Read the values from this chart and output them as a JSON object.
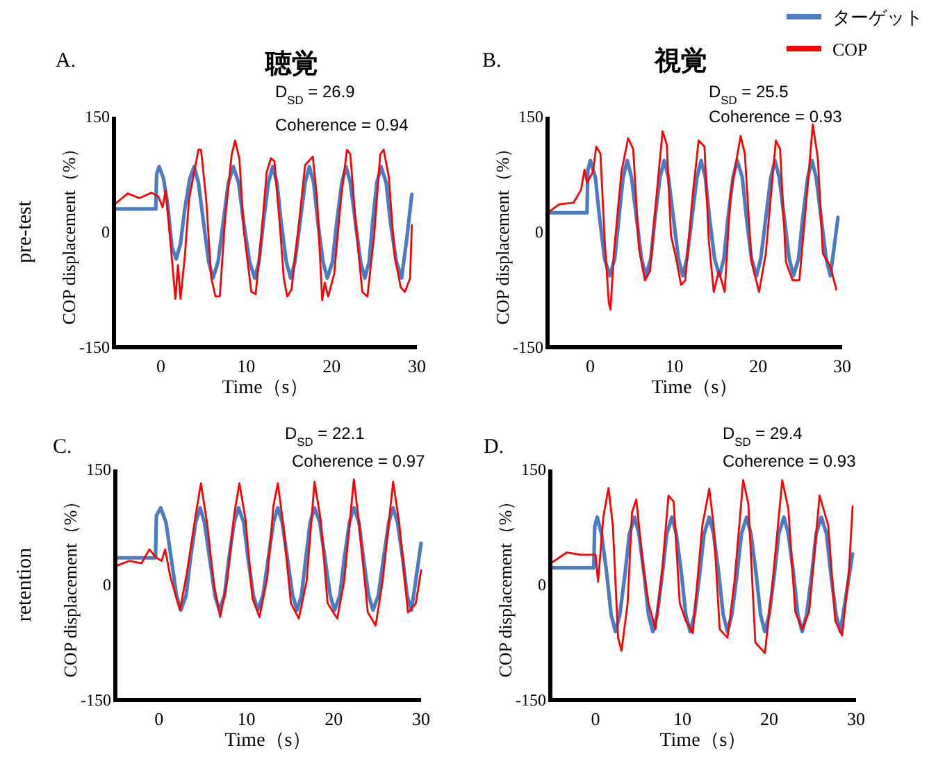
{
  "chart_data": [
    {
      "type": "line",
      "title": "聴覚",
      "xlabel": "Time（s）",
      "ylabel": "COP displacement（%）",
      "xlim": [
        -5.5,
        30
      ],
      "ylim": [
        -150,
        150
      ],
      "xticks": [
        0,
        10,
        20,
        30
      ],
      "yticks": [
        -150,
        0,
        150
      ],
      "annotations": [
        "A.",
        "D$_{SD}$ = 26.9",
        "Coherence = 0.94",
        "pre-test"
      ],
      "series": [
        {
          "color": "#4a7cc4",
          "x": [
            -5.5,
            -0.6,
            -0.5,
            -0.2,
            0.3,
            0.8,
            1.3,
            1.8,
            2.3,
            2.8,
            3.4,
            3.9,
            4.4,
            5.0,
            5.6,
            6.1,
            6.7,
            7.3,
            7.9,
            8.5,
            9.1,
            9.7,
            10.4,
            11.0,
            11.5,
            12.0,
            12.6,
            13.1,
            13.6,
            14.1,
            14.7,
            15.2,
            15.7,
            16.3,
            16.9,
            17.4,
            17.9,
            18.4,
            19.0,
            19.5,
            20.1,
            20.6,
            21.2,
            21.7,
            22.2,
            22.8,
            23.4,
            23.9,
            24.4,
            24.8,
            25.3,
            25.8,
            26.4,
            26.9,
            27.6,
            28.2,
            28.8,
            29.4
          ],
          "values": [
            30,
            30,
            75,
            85,
            70,
            35,
            -20,
            -35,
            -15,
            30,
            70,
            85,
            64,
            12,
            -39,
            -60,
            -39,
            12,
            64,
            85,
            64,
            12,
            -39,
            -60,
            -39,
            12,
            64,
            85,
            64,
            12,
            -39,
            -60,
            -39,
            12,
            64,
            85,
            64,
            12,
            -39,
            -60,
            -39,
            12,
            64,
            85,
            64,
            12,
            -39,
            -60,
            -39,
            12,
            64,
            85,
            64,
            12,
            -39,
            -60,
            -10,
            49
          ]
        },
        {
          "color": "#ff0000",
          "x": [
            -5.5,
            -3.9,
            -2.5,
            -1.1,
            -0.3,
            0.2,
            0.55,
            0.9,
            1.7,
            2.0,
            2.3,
            2.8,
            3.3,
            4.4,
            4.7,
            5.3,
            5.9,
            6.4,
            6.9,
            7.5,
            8.3,
            8.7,
            9.2,
            9.7,
            10.6,
            11.1,
            11.7,
            12.4,
            12.9,
            13.3,
            13.9,
            14.4,
            14.8,
            15.3,
            16.1,
            16.9,
            17.8,
            18.3,
            18.9,
            19.2,
            19.6,
            20.3,
            21.1,
            21.8,
            22.2,
            22.8,
            23.6,
            24.2,
            25.0,
            25.7,
            26.1,
            26.7,
            27.4,
            28.1,
            28.6,
            29.2,
            29.4
          ],
          "values": [
            35,
            50,
            44,
            51,
            46,
            32,
            54,
            14,
            -87,
            -43,
            -87,
            -32,
            43,
            107,
            107,
            43,
            -60,
            -84,
            -84,
            14,
            101,
            119,
            95,
            3,
            -78,
            -81,
            -14,
            78,
            96,
            92,
            14,
            -60,
            -84,
            -75,
            3,
            87,
            98,
            43,
            -89,
            -66,
            -84,
            -55,
            43,
            107,
            101,
            14,
            -78,
            -84,
            -3,
            101,
            107,
            72,
            -32,
            -72,
            -78,
            -60,
            9
          ]
        }
      ]
    },
    {
      "type": "line",
      "title": "視覚",
      "xlabel": "Time（s）",
      "ylabel": "COP displacement（%）",
      "xlim": [
        -5.1,
        30
      ],
      "ylim": [
        -150,
        150
      ],
      "xticks": [
        0,
        10,
        20,
        30
      ],
      "yticks": [
        -150,
        0,
        150
      ],
      "legend": "top right",
      "annotations": [
        "B.",
        "D$_{SD}$ = 25.5",
        "Coherence = 0.93"
      ],
      "series": [
        {
          "name": "ターゲット",
          "color": "#4a7cc4",
          "x": [
            -5.1,
            -0.4,
            -0.3,
            0.0,
            0.6,
            1.1,
            1.7,
            2.3,
            2.9,
            3.4,
            3.9,
            4.4,
            4.9,
            5.5,
            6.1,
            6.6,
            7.2,
            7.7,
            8.3,
            8.8,
            9.3,
            9.9,
            10.5,
            11.0,
            11.5,
            12.1,
            12.7,
            13.2,
            13.7,
            14.2,
            14.8,
            15.4,
            15.9,
            16.4,
            17.0,
            17.5,
            18.1,
            18.6,
            19.2,
            19.8,
            20.3,
            20.9,
            21.5,
            22.0,
            22.5,
            23.1,
            23.7,
            24.2,
            24.8,
            25.3,
            25.9,
            26.4,
            26.9,
            27.5,
            28.1,
            28.6,
            29.5
          ],
          "values": [
            25,
            25,
            80,
            93,
            71,
            18,
            -35,
            -57,
            -35,
            18,
            71,
            93,
            71,
            18,
            -35,
            -57,
            -35,
            18,
            71,
            93,
            71,
            18,
            -35,
            -57,
            -35,
            18,
            71,
            93,
            71,
            18,
            -35,
            -57,
            -35,
            18,
            71,
            93,
            71,
            18,
            -35,
            -57,
            -35,
            18,
            71,
            93,
            71,
            18,
            -35,
            -57,
            -35,
            18,
            71,
            93,
            71,
            18,
            -35,
            -57,
            19
          ]
        },
        {
          "name": "COP",
          "color": "#ff0000",
          "x": [
            -5.1,
            -3.7,
            -2.0,
            -1.1,
            -0.7,
            -0.4,
            0.3,
            0.7,
            1.2,
            1.7,
            2.2,
            2.4,
            2.8,
            3.7,
            4.5,
            5.1,
            5.8,
            6.5,
            7.1,
            7.9,
            8.6,
            9.1,
            9.6,
            10.3,
            10.8,
            11.3,
            12.2,
            12.9,
            13.6,
            14.1,
            14.7,
            15.3,
            16.0,
            16.7,
            17.9,
            18.4,
            19.2,
            20.1,
            20.9,
            22.1,
            22.6,
            23.3,
            24.1,
            24.9,
            25.8,
            26.5,
            27.1,
            27.7,
            28.6,
            29.3
          ],
          "values": [
            25,
            36,
            38,
            55,
            81,
            64,
            78,
            111,
            102,
            -10,
            -92,
            -101,
            -28,
            78,
            122,
            108,
            -22,
            -63,
            -51,
            49,
            131,
            114,
            -4,
            -39,
            -69,
            -63,
            49,
            119,
            111,
            -10,
            -78,
            -51,
            -78,
            49,
            125,
            102,
            -39,
            -78,
            -28,
            119,
            108,
            -39,
            -63,
            -63,
            49,
            140,
            96,
            -28,
            -45,
            -75
          ]
        }
      ]
    },
    {
      "type": "line",
      "xlabel": "Time（s）",
      "ylabel": "COP displacement（%）",
      "xlim": [
        -5,
        30
      ],
      "ylim": [
        -150,
        150
      ],
      "xticks": [
        0,
        10,
        20,
        30
      ],
      "yticks": [
        -150,
        0,
        150
      ],
      "annotations": [
        "C.",
        "D$_{SD}$ = 22.1",
        "Coherence = 0.97",
        "retention"
      ],
      "series": [
        {
          "color": "#4a7cc4",
          "x": [
            -5,
            -0.4,
            -0.3,
            0.2,
            0.8,
            1.4,
            2.0,
            2.5,
            3.1,
            3.6,
            4.2,
            4.7,
            5.2,
            5.8,
            6.4,
            6.9,
            7.5,
            8.0,
            8.6,
            9.1,
            9.7,
            10.2,
            10.8,
            11.3,
            11.9,
            12.5,
            13.1,
            13.6,
            14.1,
            14.7,
            15.3,
            15.8,
            16.3,
            16.8,
            17.3,
            17.8,
            18.4,
            19.0,
            19.6,
            20.1,
            20.7,
            21.2,
            21.8,
            22.3,
            22.9,
            23.4,
            24.0,
            24.5,
            25.1,
            25.7,
            26.3,
            26.8,
            27.3,
            27.9,
            28.4,
            28.9,
            30
          ],
          "values": [
            35,
            35,
            90,
            100,
            81,
            34,
            -14,
            -33,
            -14,
            34,
            81,
            100,
            81,
            34,
            -14,
            -33,
            -14,
            34,
            81,
            100,
            81,
            34,
            -14,
            -33,
            -14,
            34,
            81,
            100,
            81,
            34,
            -14,
            -33,
            -14,
            34,
            81,
            100,
            81,
            34,
            -14,
            -33,
            -14,
            34,
            81,
            100,
            81,
            34,
            -14,
            -33,
            -14,
            34,
            81,
            100,
            81,
            34,
            -14,
            -33,
            54
          ]
        },
        {
          "color": "#ff0000",
          "x": [
            -4.8,
            -3.4,
            -2.0,
            -1.1,
            -0.4,
            0.3,
            0.7,
            1.3,
            2.4,
            3.2,
            4.2,
            4.8,
            5.5,
            6.3,
            7.0,
            7.8,
            8.6,
            9.2,
            9.9,
            10.7,
            11.5,
            12.4,
            13.1,
            13.6,
            14.2,
            15.1,
            16.0,
            16.9,
            17.8,
            18.5,
            19.3,
            20.4,
            21.2,
            22.3,
            22.9,
            23.9,
            24.8,
            25.6,
            26.8,
            27.5,
            28.5,
            29.4,
            30
          ],
          "values": [
            25,
            31,
            28,
            46,
            36,
            31,
            46,
            10,
            -33,
            16,
            91,
            132,
            80,
            -1,
            -42,
            5,
            91,
            132,
            85,
            -18,
            -42,
            10,
            103,
            132,
            80,
            -24,
            -44,
            5,
            134,
            85,
            -24,
            -44,
            5,
            137,
            80,
            -36,
            -53,
            5,
            134,
            80,
            -36,
            -24,
            19
          ]
        }
      ]
    },
    {
      "type": "line",
      "xlabel": "Time（s）",
      "ylabel": "COP displacement（%）",
      "xlim": [
        -5.2,
        30
      ],
      "ylim": [
        -150,
        150
      ],
      "xticks": [
        0,
        10,
        20,
        30
      ],
      "yticks": [
        -150,
        0,
        150
      ],
      "annotations": [
        "D.",
        "D$_{SD}$ = 29.4",
        "Coherence = 0.93"
      ],
      "series": [
        {
          "color": "#4a7cc4",
          "x": [
            -5.2,
            -0.2,
            -0.1,
            0.2,
            0.7,
            1.3,
            1.8,
            2.3,
            2.8,
            3.4,
            3.9,
            4.5,
            5.0,
            5.6,
            6.1,
            6.6,
            7.1,
            7.7,
            8.2,
            8.8,
            9.3,
            9.9,
            10.4,
            10.9,
            11.4,
            12.0,
            12.5,
            13.1,
            13.6,
            14.2,
            14.7,
            15.2,
            15.7,
            16.3,
            16.8,
            17.4,
            17.9,
            18.5,
            19.0,
            19.5,
            20.0,
            20.6,
            21.1,
            21.7,
            22.2,
            22.8,
            23.3,
            23.8,
            24.3,
            24.9,
            25.4,
            26.0,
            26.6,
            27.1,
            27.7,
            28.2,
            29.6
          ],
          "values": [
            22,
            22,
            75,
            88,
            66,
            14,
            -39,
            -61,
            -39,
            14,
            66,
            88,
            66,
            14,
            -39,
            -61,
            -39,
            14,
            66,
            88,
            66,
            14,
            -39,
            -61,
            -39,
            14,
            66,
            88,
            66,
            14,
            -39,
            -61,
            -39,
            14,
            66,
            88,
            66,
            14,
            -39,
            -61,
            -39,
            14,
            66,
            88,
            66,
            14,
            -39,
            -61,
            -39,
            14,
            66,
            88,
            66,
            14,
            -39,
            -61,
            40
          ]
        },
        {
          "color": "#ff0000",
          "x": [
            -5.0,
            -3.3,
            -1.7,
            0,
            0.3,
            0.9,
            1.5,
            2.0,
            2.6,
            3.0,
            3.7,
            4.2,
            4.7,
            5.5,
            6.1,
            6.9,
            7.7,
            8.4,
            9.0,
            9.7,
            10.4,
            11.2,
            12.3,
            13.1,
            13.6,
            14.3,
            15.2,
            16.0,
            17.0,
            17.6,
            18.4,
            19.5,
            20.3,
            21.5,
            22.2,
            23.0,
            23.8,
            24.6,
            25.8,
            26.8,
            27.6,
            28.4,
            29.2,
            29.6
          ],
          "values": [
            29,
            42,
            39,
            39,
            4,
            88,
            126,
            77,
            -69,
            -86,
            -24,
            94,
            111,
            21,
            -24,
            -58,
            21,
            116,
            108,
            -24,
            -47,
            -63,
            77,
            125,
            77,
            -58,
            -69,
            4,
            136,
            105,
            -75,
            -89,
            -7,
            136,
            99,
            -35,
            -58,
            -35,
            116,
            77,
            -47,
            -66,
            21,
            102
          ]
        }
      ]
    }
  ]
}
